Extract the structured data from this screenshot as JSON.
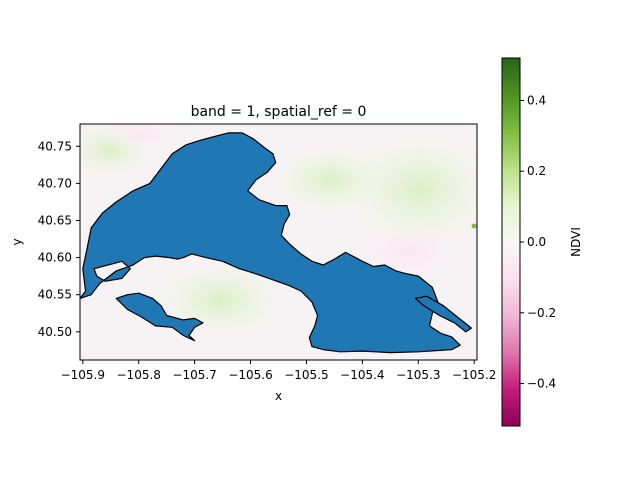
{
  "chart_data": {
    "type": "heatmap",
    "title": "band = 1, spatial_ref = 0",
    "xlabel": "x",
    "ylabel": "y",
    "xlim": [
      -105.905,
      -105.195
    ],
    "ylim": [
      40.462,
      40.78
    ],
    "x_ticks": [
      -105.9,
      -105.8,
      -105.7,
      -105.6,
      -105.5,
      -105.4,
      -105.3,
      -105.2
    ],
    "x_tick_labels": [
      "−105.9",
      "−105.8",
      "−105.7",
      "−105.6",
      "−105.5",
      "−105.4",
      "−105.3",
      "−105.2"
    ],
    "y_ticks": [
      40.5,
      40.55,
      40.6,
      40.65,
      40.7,
      40.75
    ],
    "y_tick_labels": [
      "40.50",
      "40.55",
      "40.60",
      "40.65",
      "40.70",
      "40.75"
    ],
    "colorbar": {
      "label": "NDVI",
      "range": [
        -0.52,
        0.52
      ],
      "colormap": "PiYG",
      "ticks": [
        -0.4,
        -0.2,
        0.0,
        0.2,
        0.4
      ],
      "tick_labels": [
        "−0.4",
        "−0.2",
        "0.0",
        "0.2",
        "0.4"
      ]
    },
    "mask_color": "#1f77b4",
    "mask_outline_color": "#000000",
    "mask_outline": [
      [
        -105.905,
        40.545
      ],
      [
        -105.895,
        40.555
      ],
      [
        -105.9,
        40.585
      ],
      [
        -105.893,
        40.61
      ],
      [
        -105.885,
        40.64
      ],
      [
        -105.865,
        40.66
      ],
      [
        -105.84,
        40.675
      ],
      [
        -105.81,
        40.69
      ],
      [
        -105.78,
        40.7
      ],
      [
        -105.76,
        40.72
      ],
      [
        -105.74,
        40.74
      ],
      [
        -105.715,
        40.752
      ],
      [
        -105.69,
        40.758
      ],
      [
        -105.665,
        40.763
      ],
      [
        -105.64,
        40.768
      ],
      [
        -105.615,
        40.768
      ],
      [
        -105.595,
        40.76
      ],
      [
        -105.575,
        40.748
      ],
      [
        -105.56,
        40.74
      ],
      [
        -105.555,
        40.728
      ],
      [
        -105.57,
        40.715
      ],
      [
        -105.59,
        40.705
      ],
      [
        -105.605,
        40.69
      ],
      [
        -105.585,
        40.678
      ],
      [
        -105.555,
        40.67
      ],
      [
        -105.535,
        40.67
      ],
      [
        -105.53,
        40.658
      ],
      [
        -105.54,
        40.645
      ],
      [
        -105.545,
        40.63
      ],
      [
        -105.53,
        40.618
      ],
      [
        -105.51,
        40.605
      ],
      [
        -105.49,
        40.595
      ],
      [
        -105.47,
        40.59
      ],
      [
        -105.45,
        40.598
      ],
      [
        -105.43,
        40.607
      ],
      [
        -105.4,
        40.595
      ],
      [
        -105.38,
        40.588
      ],
      [
        -105.36,
        40.59
      ],
      [
        -105.34,
        40.582
      ],
      [
        -105.32,
        40.578
      ],
      [
        -105.3,
        40.575
      ],
      [
        -105.275,
        40.56
      ],
      [
        -105.265,
        40.54
      ],
      [
        -105.275,
        40.525
      ],
      [
        -105.28,
        40.508
      ],
      [
        -105.26,
        40.498
      ],
      [
        -105.24,
        40.493
      ],
      [
        -105.225,
        40.482
      ],
      [
        -105.24,
        40.476
      ],
      [
        -105.3,
        40.473
      ],
      [
        -105.35,
        40.472
      ],
      [
        -105.4,
        40.474
      ],
      [
        -105.44,
        40.473
      ],
      [
        -105.47,
        40.476
      ],
      [
        -105.49,
        40.48
      ],
      [
        -105.495,
        40.492
      ],
      [
        -105.485,
        40.508
      ],
      [
        -105.48,
        40.522
      ],
      [
        -105.49,
        40.54
      ],
      [
        -105.51,
        40.555
      ],
      [
        -105.53,
        40.562
      ],
      [
        -105.56,
        40.57
      ],
      [
        -105.59,
        40.578
      ],
      [
        -105.62,
        40.585
      ],
      [
        -105.65,
        40.595
      ],
      [
        -105.68,
        40.6
      ],
      [
        -105.705,
        40.605
      ],
      [
        -105.72,
        40.6
      ],
      [
        -105.73,
        40.598
      ],
      [
        -105.745,
        40.6
      ],
      [
        -105.77,
        40.602
      ],
      [
        -105.79,
        40.6
      ],
      [
        -105.81,
        40.59
      ],
      [
        -105.84,
        40.582
      ],
      [
        -105.87,
        40.565
      ],
      [
        -105.885,
        40.55
      ]
    ],
    "mask_lobe": [
      [
        -105.84,
        40.545
      ],
      [
        -105.82,
        40.55
      ],
      [
        -105.8,
        40.552
      ],
      [
        -105.775,
        40.545
      ],
      [
        -105.76,
        40.535
      ],
      [
        -105.75,
        40.522
      ],
      [
        -105.72,
        40.516
      ],
      [
        -105.7,
        40.518
      ],
      [
        -105.685,
        40.512
      ],
      [
        -105.7,
        40.506
      ],
      [
        -105.71,
        40.495
      ],
      [
        -105.7,
        40.488
      ],
      [
        -105.72,
        40.495
      ],
      [
        -105.74,
        40.506
      ],
      [
        -105.77,
        40.508
      ],
      [
        -105.795,
        40.52
      ],
      [
        -105.82,
        40.53
      ]
    ],
    "mask_islet": [
      [
        -105.305,
        40.545
      ],
      [
        -105.285,
        40.548
      ],
      [
        -105.255,
        40.535
      ],
      [
        -105.23,
        40.52
      ],
      [
        -105.205,
        40.505
      ],
      [
        -105.215,
        40.5
      ],
      [
        -105.235,
        40.512
      ],
      [
        -105.262,
        40.522
      ],
      [
        -105.29,
        40.535
      ]
    ],
    "mask_hole": [
      [
        -105.88,
        40.585
      ],
      [
        -105.855,
        40.59
      ],
      [
        -105.83,
        40.595
      ],
      [
        -105.815,
        40.585
      ],
      [
        -105.83,
        40.572
      ],
      [
        -105.86,
        40.568
      ],
      [
        -105.875,
        40.575
      ]
    ]
  }
}
